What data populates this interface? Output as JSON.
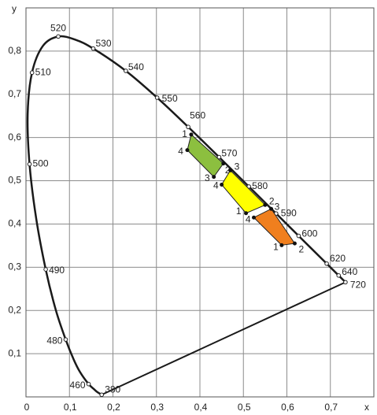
{
  "chart_data": {
    "type": "chromaticity",
    "xlabel": "x",
    "ylabel": "y",
    "xlim": [
      0,
      0.8
    ],
    "ylim": [
      0,
      0.9
    ],
    "xticks": [
      0,
      {
        "value": 0.1,
        "label": "0,1"
      },
      {
        "value": 0.2,
        "label": "0,2"
      },
      {
        "value": 0.3,
        "label": "0,3"
      },
      {
        "value": 0.4,
        "label": "0,4"
      },
      {
        "value": 0.5,
        "label": "0,5"
      },
      {
        "value": 0.6,
        "label": "0,6"
      },
      {
        "value": 0.7,
        "label": "0,7"
      }
    ],
    "yticks": [
      {
        "value": 0.1,
        "label": "0,1"
      },
      {
        "value": 0.2,
        "label": "0,2"
      },
      {
        "value": 0.3,
        "label": "0,3"
      },
      {
        "value": 0.4,
        "label": "0,4"
      },
      {
        "value": 0.5,
        "label": "0,5"
      },
      {
        "value": 0.6,
        "label": "0,6"
      },
      {
        "value": 0.7,
        "label": "0,7"
      },
      {
        "value": 0.8,
        "label": "0,8"
      }
    ],
    "grid": true,
    "locus": {
      "color": "#1a1a1a",
      "labels": [
        "380",
        null,
        null,
        "460",
        null,
        null,
        "480",
        null,
        "490",
        null,
        "500",
        null,
        "510",
        null,
        "520",
        null,
        "530",
        "540",
        "550",
        "560",
        "570",
        "580",
        "590",
        "600",
        "620",
        "640",
        "720"
      ],
      "x": [
        0.1741,
        0.1644,
        0.1566,
        0.144,
        0.1241,
        0.1096,
        0.0913,
        0.0687,
        0.0454,
        0.0235,
        0.0082,
        0.0039,
        0.0139,
        0.0389,
        0.0743,
        0.1142,
        0.1547,
        0.2296,
        0.3016,
        0.3731,
        0.4441,
        0.5125,
        0.5752,
        0.627,
        0.6915,
        0.719,
        0.7347
      ],
      "y": [
        0.005,
        0.0109,
        0.0177,
        0.0297,
        0.0578,
        0.0868,
        0.1327,
        0.2007,
        0.295,
        0.4127,
        0.5384,
        0.6548,
        0.7502,
        0.812,
        0.8338,
        0.8262,
        0.8059,
        0.7543,
        0.6923,
        0.6245,
        0.5547,
        0.4866,
        0.4242,
        0.3725,
        0.3083,
        0.2809,
        0.2653
      ]
    },
    "regions": [
      {
        "color": "#8cbf3f",
        "labels": [
          "1",
          "2",
          "3",
          "4"
        ],
        "x": [
          0.38,
          0.454,
          0.432,
          0.371
        ],
        "y": [
          0.607,
          0.54,
          0.509,
          0.571
        ]
      },
      {
        "color": "#ffff00",
        "labels": [
          "3",
          "2",
          "1",
          "4"
        ],
        "x": [
          0.47,
          0.55,
          0.506,
          0.45
        ],
        "y": [
          0.524,
          0.444,
          0.425,
          0.491
        ]
      },
      {
        "color": "#f07f1e",
        "labels": [
          "3",
          "2",
          "1",
          "4"
        ],
        "x": [
          0.564,
          0.618,
          0.588,
          0.524
        ],
        "y": [
          0.435,
          0.355,
          0.351,
          0.415
        ]
      }
    ]
  }
}
